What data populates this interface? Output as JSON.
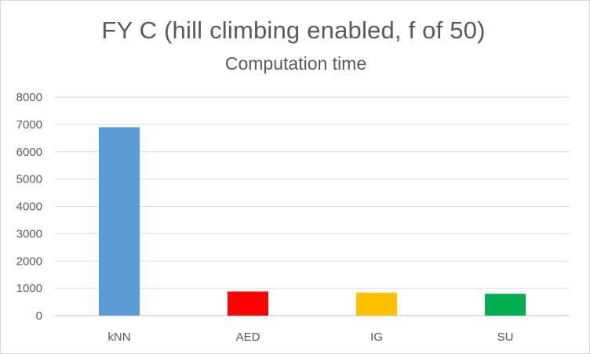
{
  "chart_data": {
    "type": "bar",
    "title": "FY C (hill climbing enabled, f of 50)",
    "subtitle": "Computation time",
    "xlabel": "",
    "ylabel": "",
    "categories": [
      "kNN",
      "AED",
      "IG",
      "SU"
    ],
    "values": [
      6900,
      880,
      840,
      800
    ],
    "colors": [
      "#5b9bd5",
      "#ff0000",
      "#ffc000",
      "#00b050"
    ],
    "ylim": [
      0,
      8000
    ],
    "yticks": [
      0,
      1000,
      2000,
      3000,
      4000,
      5000,
      6000,
      7000,
      8000
    ],
    "grid": true,
    "legend": "none"
  }
}
